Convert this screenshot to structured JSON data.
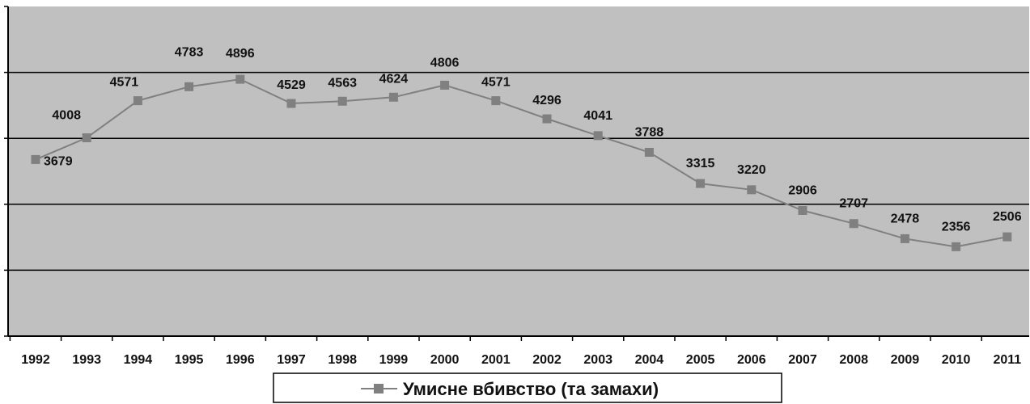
{
  "chart_data": {
    "type": "line",
    "categories": [
      "1992",
      "1993",
      "1994",
      "1995",
      "1996",
      "1997",
      "1998",
      "1999",
      "2000",
      "2001",
      "2002",
      "2003",
      "2004",
      "2005",
      "2006",
      "2007",
      "2008",
      "2009",
      "2010",
      "2011"
    ],
    "series": [
      {
        "name": "Умисне вбивство (та замахи)",
        "values": [
          3679,
          4008,
          4571,
          4783,
          4896,
          4529,
          4563,
          4624,
          4806,
          4571,
          4296,
          4041,
          3788,
          3315,
          3220,
          2906,
          2707,
          2478,
          2356,
          2506
        ],
        "color": "#808080",
        "marker": "square"
      }
    ],
    "data_labels": [
      "3679",
      "4008",
      "4571",
      "4783",
      "4896",
      "4529",
      "4563",
      "4624",
      "4806",
      "4571",
      "4296",
      "4041",
      "3788",
      "3315",
      "3220",
      "2906",
      "2707",
      "2478",
      "2356",
      "2506"
    ],
    "ylim": [
      1000,
      6000
    ],
    "grid": true,
    "legend": "bottom-center",
    "plot_background": "#c0c0c0"
  }
}
